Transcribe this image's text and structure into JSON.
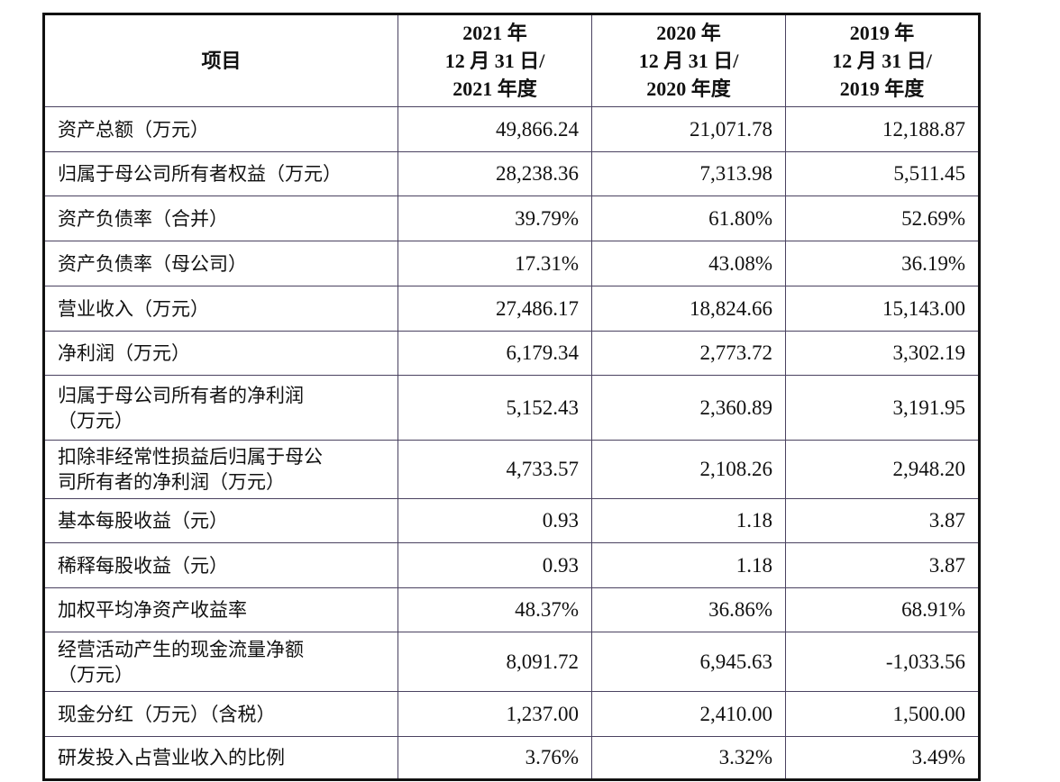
{
  "table": {
    "headers": [
      {
        "lines": [
          "项目"
        ]
      },
      {
        "lines": [
          "2021 年",
          "12 月 31 日/",
          "2021 年度"
        ]
      },
      {
        "lines": [
          "2020 年",
          "12 月 31 日/",
          "2020 年度"
        ]
      },
      {
        "lines": [
          "2019 年",
          "12 月 31 日/",
          "2019 年度"
        ]
      }
    ],
    "rows": [
      {
        "label": [
          "资产总额（万元）"
        ],
        "values": [
          "49,866.24",
          "21,071.78",
          "12,188.87"
        ]
      },
      {
        "label": [
          "归属于母公司所有者权益（万元）"
        ],
        "values": [
          "28,238.36",
          "7,313.98",
          "5,511.45"
        ]
      },
      {
        "label": [
          "资产负债率（合并）"
        ],
        "values": [
          "39.79%",
          "61.80%",
          "52.69%"
        ]
      },
      {
        "label": [
          "资产负债率（母公司）"
        ],
        "values": [
          "17.31%",
          "43.08%",
          "36.19%"
        ]
      },
      {
        "label": [
          "营业收入（万元）"
        ],
        "values": [
          "27,486.17",
          "18,824.66",
          "15,143.00"
        ]
      },
      {
        "label": [
          "净利润（万元）"
        ],
        "values": [
          "6,179.34",
          "2,773.72",
          "3,302.19"
        ]
      },
      {
        "label": [
          "归属于母公司所有者的净利润",
          "（万元）"
        ],
        "values": [
          "5,152.43",
          "2,360.89",
          "3,191.95"
        ]
      },
      {
        "label": [
          "扣除非经常性损益后归属于母公",
          "司所有者的净利润（万元）"
        ],
        "values": [
          "4,733.57",
          "2,108.26",
          "2,948.20"
        ]
      },
      {
        "label": [
          "基本每股收益（元）"
        ],
        "values": [
          "0.93",
          "1.18",
          "3.87"
        ]
      },
      {
        "label": [
          "稀释每股收益（元）"
        ],
        "values": [
          "0.93",
          "1.18",
          "3.87"
        ]
      },
      {
        "label": [
          "加权平均净资产收益率"
        ],
        "values": [
          "48.37%",
          "36.86%",
          "68.91%"
        ]
      },
      {
        "label": [
          "经营活动产生的现金流量净额",
          "（万元）"
        ],
        "values": [
          "8,091.72",
          "6,945.63",
          "-1,033.56"
        ]
      },
      {
        "label": [
          "现金分红（万元）（含税）"
        ],
        "values": [
          "1,237.00",
          "2,410.00",
          "1,500.00"
        ]
      },
      {
        "label": [
          "研发投入占营业收入的比例"
        ],
        "values": [
          "3.76%",
          "3.32%",
          "3.49%"
        ]
      }
    ]
  }
}
